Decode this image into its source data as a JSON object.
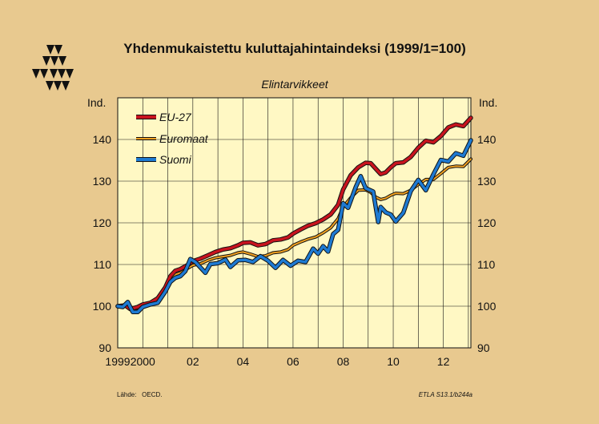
{
  "chart_data": {
    "type": "line",
    "title": "Yhdenmukaistettu kuluttajahintaindeksi (1999/1=100)",
    "subtitle": "Elintarvikkeet",
    "ylabel_left": "Ind.",
    "ylabel_right": "Ind.",
    "ylim": [
      90,
      150
    ],
    "yticks": [
      90,
      100,
      110,
      120,
      130,
      140
    ],
    "xlim": [
      1999.0,
      2013.1
    ],
    "xticks": [
      {
        "x": 1999,
        "label": "1999"
      },
      {
        "x": 2000,
        "label": "2000"
      },
      {
        "x": 2002,
        "label": "02"
      },
      {
        "x": 2004,
        "label": "04"
      },
      {
        "x": 2006,
        "label": "06"
      },
      {
        "x": 2008,
        "label": "08"
      },
      {
        "x": 2010,
        "label": "10"
      },
      {
        "x": 2012,
        "label": "12"
      }
    ],
    "grid": true,
    "legend_position": "top-left",
    "series": [
      {
        "name": "EU-27",
        "color": "#c8141e",
        "points": [
          [
            1999.0,
            100.0
          ],
          [
            1999.3,
            100.2
          ],
          [
            1999.5,
            99.3
          ],
          [
            1999.8,
            99.8
          ],
          [
            2000.0,
            100.4
          ],
          [
            2000.3,
            100.8
          ],
          [
            2000.6,
            101.9
          ],
          [
            2000.9,
            104.5
          ],
          [
            2001.1,
            107.2
          ],
          [
            2001.3,
            108.5
          ],
          [
            2001.5,
            108.9
          ],
          [
            2001.8,
            109.9
          ],
          [
            2002.0,
            110.8
          ],
          [
            2002.3,
            111.4
          ],
          [
            2002.6,
            112.2
          ],
          [
            2002.9,
            113.0
          ],
          [
            2003.2,
            113.6
          ],
          [
            2003.5,
            113.9
          ],
          [
            2003.8,
            114.6
          ],
          [
            2004.0,
            115.2
          ],
          [
            2004.3,
            115.3
          ],
          [
            2004.6,
            114.6
          ],
          [
            2004.9,
            114.9
          ],
          [
            2005.2,
            115.8
          ],
          [
            2005.5,
            116.0
          ],
          [
            2005.8,
            116.5
          ],
          [
            2006.0,
            117.4
          ],
          [
            2006.3,
            118.4
          ],
          [
            2006.6,
            119.3
          ],
          [
            2006.9,
            119.9
          ],
          [
            2007.2,
            120.8
          ],
          [
            2007.5,
            122.0
          ],
          [
            2007.8,
            124.3
          ],
          [
            2008.0,
            128.0
          ],
          [
            2008.3,
            131.4
          ],
          [
            2008.6,
            133.3
          ],
          [
            2008.9,
            134.4
          ],
          [
            2009.1,
            134.3
          ],
          [
            2009.3,
            133.0
          ],
          [
            2009.5,
            131.7
          ],
          [
            2009.7,
            132.1
          ],
          [
            2009.9,
            133.3
          ],
          [
            2010.1,
            134.3
          ],
          [
            2010.4,
            134.5
          ],
          [
            2010.7,
            135.8
          ],
          [
            2011.0,
            138.0
          ],
          [
            2011.3,
            139.7
          ],
          [
            2011.6,
            139.3
          ],
          [
            2011.9,
            140.8
          ],
          [
            2012.2,
            142.9
          ],
          [
            2012.5,
            143.6
          ],
          [
            2012.8,
            143.2
          ],
          [
            2013.1,
            145.2
          ]
        ]
      },
      {
        "name": "Euromaat",
        "color": "#f0a020",
        "points": [
          [
            1999.0,
            100.0
          ],
          [
            1999.3,
            100.1
          ],
          [
            1999.5,
            99.2
          ],
          [
            1999.8,
            99.6
          ],
          [
            2000.0,
            100.2
          ],
          [
            2000.3,
            100.6
          ],
          [
            2000.6,
            101.5
          ],
          [
            2000.9,
            104.0
          ],
          [
            2001.1,
            106.5
          ],
          [
            2001.3,
            107.6
          ],
          [
            2001.5,
            108.0
          ],
          [
            2001.8,
            109.1
          ],
          [
            2002.0,
            109.8
          ],
          [
            2002.3,
            110.2
          ],
          [
            2002.6,
            111.0
          ],
          [
            2002.9,
            111.6
          ],
          [
            2003.2,
            111.9
          ],
          [
            2003.5,
            112.2
          ],
          [
            2003.8,
            112.8
          ],
          [
            2004.0,
            113.0
          ],
          [
            2004.3,
            112.5
          ],
          [
            2004.6,
            111.9
          ],
          [
            2004.9,
            112.1
          ],
          [
            2005.2,
            112.8
          ],
          [
            2005.5,
            113.0
          ],
          [
            2005.8,
            113.6
          ],
          [
            2006.0,
            114.6
          ],
          [
            2006.3,
            115.4
          ],
          [
            2006.6,
            116.1
          ],
          [
            2006.9,
            116.6
          ],
          [
            2007.2,
            117.6
          ],
          [
            2007.5,
            118.8
          ],
          [
            2007.8,
            121.0
          ],
          [
            2008.0,
            123.8
          ],
          [
            2008.3,
            126.0
          ],
          [
            2008.6,
            127.8
          ],
          [
            2008.9,
            127.9
          ],
          [
            2009.1,
            127.3
          ],
          [
            2009.3,
            126.2
          ],
          [
            2009.5,
            125.6
          ],
          [
            2009.7,
            125.9
          ],
          [
            2009.9,
            126.6
          ],
          [
            2010.1,
            127.1
          ],
          [
            2010.4,
            127.0
          ],
          [
            2010.7,
            127.8
          ],
          [
            2011.0,
            129.2
          ],
          [
            2011.3,
            130.4
          ],
          [
            2011.6,
            130.4
          ],
          [
            2011.9,
            131.8
          ],
          [
            2012.2,
            133.3
          ],
          [
            2012.5,
            133.6
          ],
          [
            2012.8,
            133.5
          ],
          [
            2013.1,
            135.3
          ]
        ]
      },
      {
        "name": "Suomi",
        "color": "#1e7ad2",
        "points": [
          [
            1999.0,
            100.0
          ],
          [
            1999.2,
            99.8
          ],
          [
            1999.4,
            101.0
          ],
          [
            1999.6,
            98.6
          ],
          [
            1999.8,
            98.6
          ],
          [
            2000.0,
            99.8
          ],
          [
            2000.3,
            100.4
          ],
          [
            2000.6,
            100.8
          ],
          [
            2000.9,
            103.5
          ],
          [
            2001.1,
            105.8
          ],
          [
            2001.3,
            106.8
          ],
          [
            2001.5,
            107.2
          ],
          [
            2001.7,
            108.4
          ],
          [
            2001.9,
            111.3
          ],
          [
            2002.1,
            110.6
          ],
          [
            2002.3,
            109.3
          ],
          [
            2002.5,
            108.0
          ],
          [
            2002.7,
            110.1
          ],
          [
            2003.0,
            110.3
          ],
          [
            2003.3,
            111.2
          ],
          [
            2003.5,
            109.4
          ],
          [
            2003.8,
            111.0
          ],
          [
            2004.1,
            111.1
          ],
          [
            2004.4,
            110.6
          ],
          [
            2004.7,
            112.0
          ],
          [
            2005.0,
            110.9
          ],
          [
            2005.3,
            109.2
          ],
          [
            2005.6,
            111.1
          ],
          [
            2005.9,
            109.7
          ],
          [
            2006.2,
            110.9
          ],
          [
            2006.5,
            110.6
          ],
          [
            2006.8,
            113.8
          ],
          [
            2007.0,
            112.6
          ],
          [
            2007.2,
            114.4
          ],
          [
            2007.4,
            113.1
          ],
          [
            2007.6,
            117.3
          ],
          [
            2007.8,
            118.3
          ],
          [
            2008.0,
            124.7
          ],
          [
            2008.2,
            123.6
          ],
          [
            2008.5,
            128.5
          ],
          [
            2008.7,
            131.2
          ],
          [
            2008.9,
            128.3
          ],
          [
            2009.2,
            127.5
          ],
          [
            2009.4,
            120.2
          ],
          [
            2009.5,
            123.8
          ],
          [
            2009.7,
            122.5
          ],
          [
            2009.9,
            122.0
          ],
          [
            2010.1,
            120.3
          ],
          [
            2010.4,
            122.4
          ],
          [
            2010.7,
            127.6
          ],
          [
            2011.0,
            130.3
          ],
          [
            2011.3,
            127.8
          ],
          [
            2011.6,
            131.6
          ],
          [
            2011.9,
            135.1
          ],
          [
            2012.2,
            134.7
          ],
          [
            2012.5,
            136.7
          ],
          [
            2012.8,
            136.1
          ],
          [
            2013.1,
            139.8
          ]
        ]
      }
    ]
  },
  "footer": {
    "source": "Lähde:   OECD.",
    "code": "ETLA S13.1/b244a"
  }
}
